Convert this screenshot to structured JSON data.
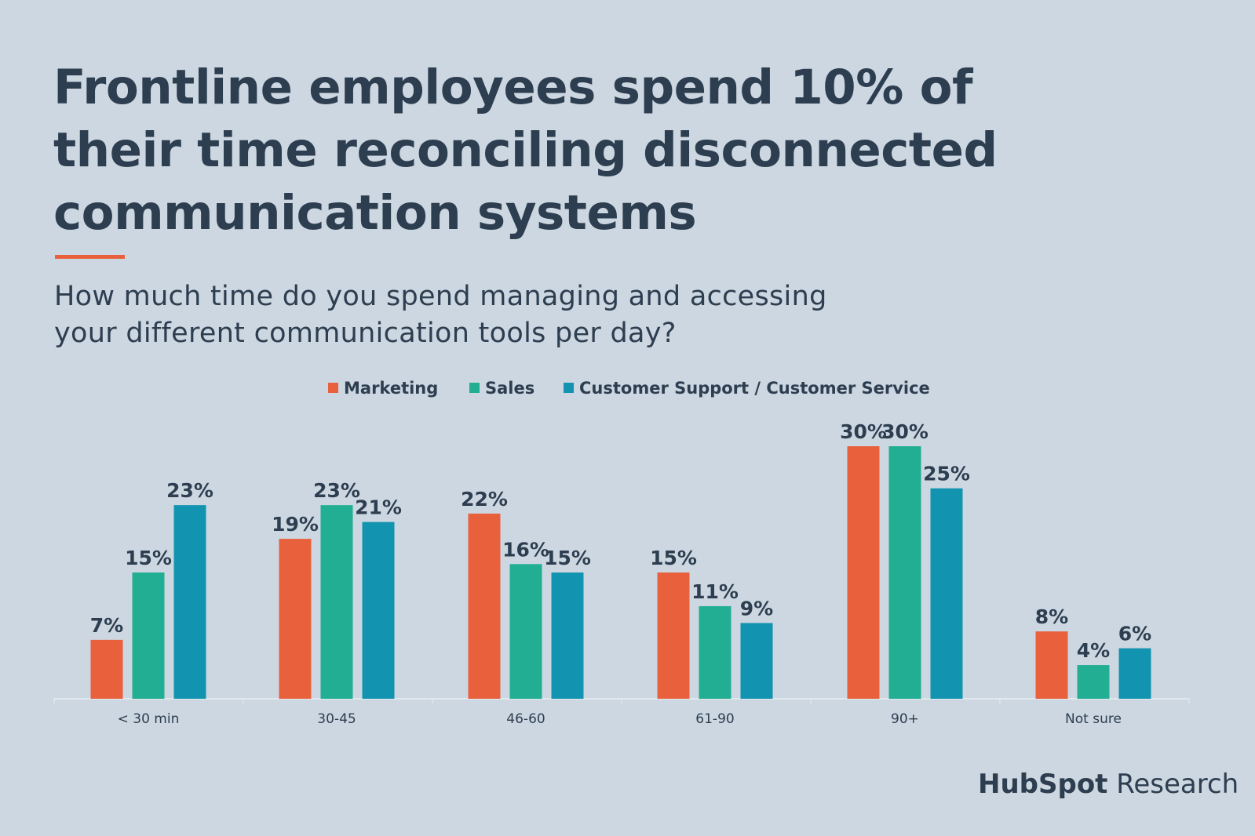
{
  "header": {
    "title_lines": [
      "Frontline employees spend 10% of",
      "their time reconciling disconnected",
      "communication systems"
    ],
    "subtitle_lines": [
      "How much time do you spend managing and accessing",
      "your different communication tools per day?"
    ]
  },
  "chart_data": {
    "type": "bar",
    "title": "Frontline employees spend 10% of their time reconciling disconnected communication systems",
    "subtitle": "How much time do you spend managing and accessing your different communication tools per day?",
    "categories": [
      "< 30 min",
      "30-45",
      "46-60",
      "61-90",
      "90+",
      "Not sure"
    ],
    "series": [
      {
        "name": "Marketing",
        "color": "#e8603c",
        "values": [
          7,
          19,
          22,
          15,
          30,
          8
        ]
      },
      {
        "name": "Sales",
        "color": "#22ae93",
        "values": [
          15,
          23,
          16,
          11,
          30,
          4
        ]
      },
      {
        "name": "Customer Support / Customer Service",
        "color": "#1294b0",
        "values": [
          23,
          21,
          15,
          9,
          25,
          6
        ]
      }
    ],
    "value_suffix": "%",
    "ylim": [
      0,
      30
    ],
    "grid": false,
    "legend": "top-center",
    "xlabel": "",
    "ylabel": ""
  },
  "branding": {
    "logo_text": "HubSpot",
    "logo_suffix": "Research"
  }
}
